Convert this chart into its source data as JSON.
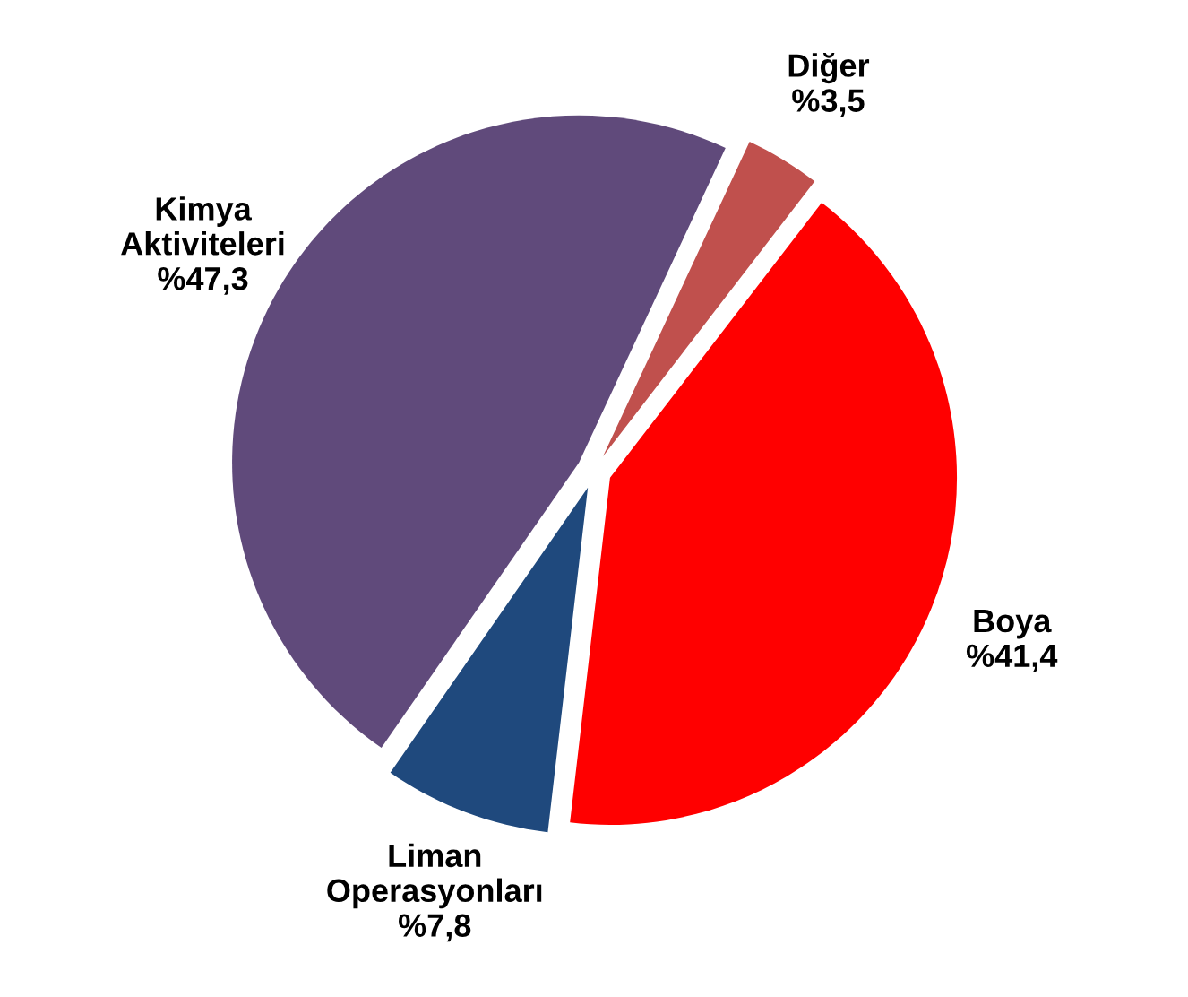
{
  "chart_data": {
    "type": "pie",
    "categories": [
      "Diğer",
      "Boya",
      "Liman Operasyonları",
      "Kimya Aktiviteleri"
    ],
    "values": [
      3.5,
      41.4,
      7.8,
      47.3
    ],
    "value_labels": [
      "%3,5",
      "%41,4",
      "%7,8",
      "%47,3"
    ],
    "colors": [
      "#c0504d",
      "#ff0000",
      "#1f497d",
      "#604a7b"
    ],
    "legend": false
  }
}
